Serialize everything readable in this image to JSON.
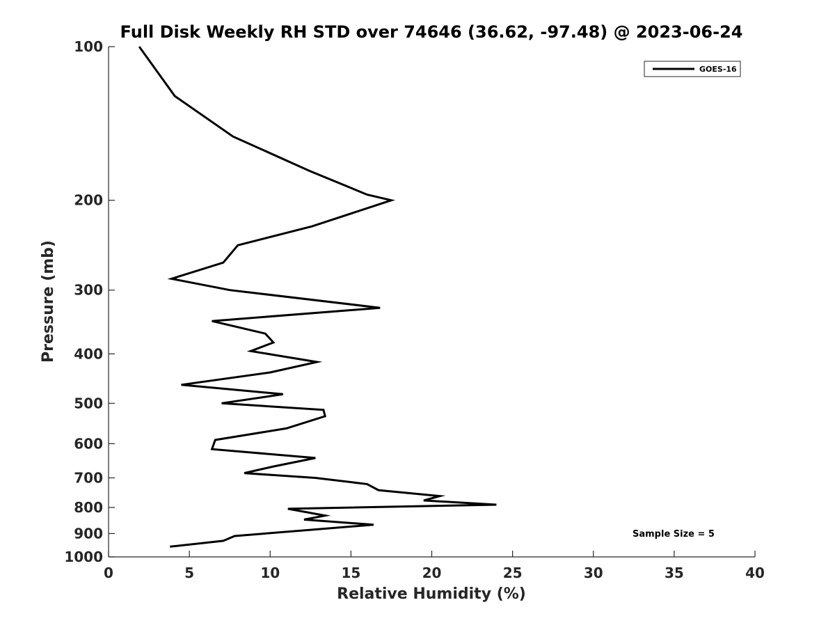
{
  "chart_data": {
    "type": "line",
    "title": "Full Disk Weekly RH STD over 74646 (36.62, -97.48) @ 2023-06-24",
    "xlabel": "Relative Humidity (%)",
    "ylabel": "Pressure (mb)",
    "xlim": [
      0,
      40
    ],
    "ylim": [
      100,
      1000
    ],
    "yscale": "log",
    "y_inverted": true,
    "grid": false,
    "x_ticks": [
      0,
      5,
      10,
      15,
      20,
      25,
      30,
      35,
      40
    ],
    "y_ticks": [
      100,
      200,
      300,
      400,
      500,
      600,
      700,
      800,
      900,
      1000
    ],
    "legend": {
      "position": "top-right",
      "entries": [
        "GOES-16"
      ]
    },
    "annotation": "Sample Size = 5",
    "series": [
      {
        "name": "GOES-16",
        "color": "#000000",
        "x": [
          1.9,
          4.1,
          7.7,
          12.4,
          16.0,
          17.5,
          12.6,
          8.0,
          7.1,
          3.9,
          7.5,
          16.8,
          6.4,
          9.7,
          10.2,
          8.8,
          12.9,
          10.0,
          4.5,
          10.8,
          7.0,
          13.3,
          13.4,
          11.0,
          6.6,
          6.4,
          12.8,
          10.2,
          8.4,
          12.8,
          16.0,
          16.7,
          20.5,
          19.5,
          24.0,
          11.1,
          13.4,
          12.1,
          16.4,
          12.5,
          7.8,
          7.1,
          3.8
        ],
        "y": [
          100,
          125,
          150,
          175,
          195,
          200,
          225,
          245,
          265,
          285,
          300,
          325,
          345,
          365,
          380,
          395,
          415,
          435,
          460,
          480,
          500,
          515,
          530,
          560,
          590,
          615,
          640,
          665,
          685,
          700,
          720,
          740,
          760,
          775,
          790,
          805,
          830,
          845,
          865,
          885,
          910,
          930,
          955
        ]
      }
    ]
  }
}
